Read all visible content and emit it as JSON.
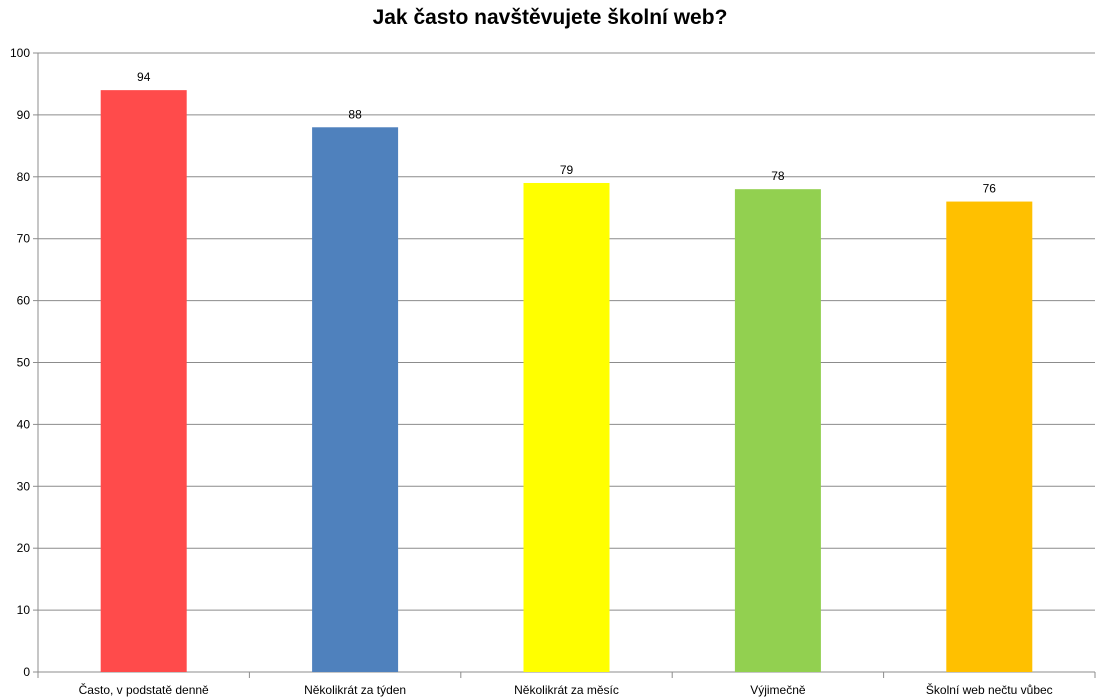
{
  "chart_data": {
    "type": "bar",
    "title": "Jak často navštěvujete školní web?",
    "xlabel": "",
    "ylabel": "",
    "ylim": [
      0,
      100
    ],
    "yticks": [
      0,
      10,
      20,
      30,
      40,
      50,
      60,
      70,
      80,
      90,
      100
    ],
    "grid": true,
    "legend": "none",
    "categories": [
      "Často, v podstatě denně",
      "Několikrát za týden",
      "Několikrát za měsíc",
      "Výjimečně",
      "Školní web nečtu vůbec"
    ],
    "values": [
      94,
      88,
      79,
      78,
      76
    ],
    "colors": [
      "#ff4b4b",
      "#4f81bd",
      "#ffff00",
      "#92d050",
      "#ffc000"
    ]
  }
}
